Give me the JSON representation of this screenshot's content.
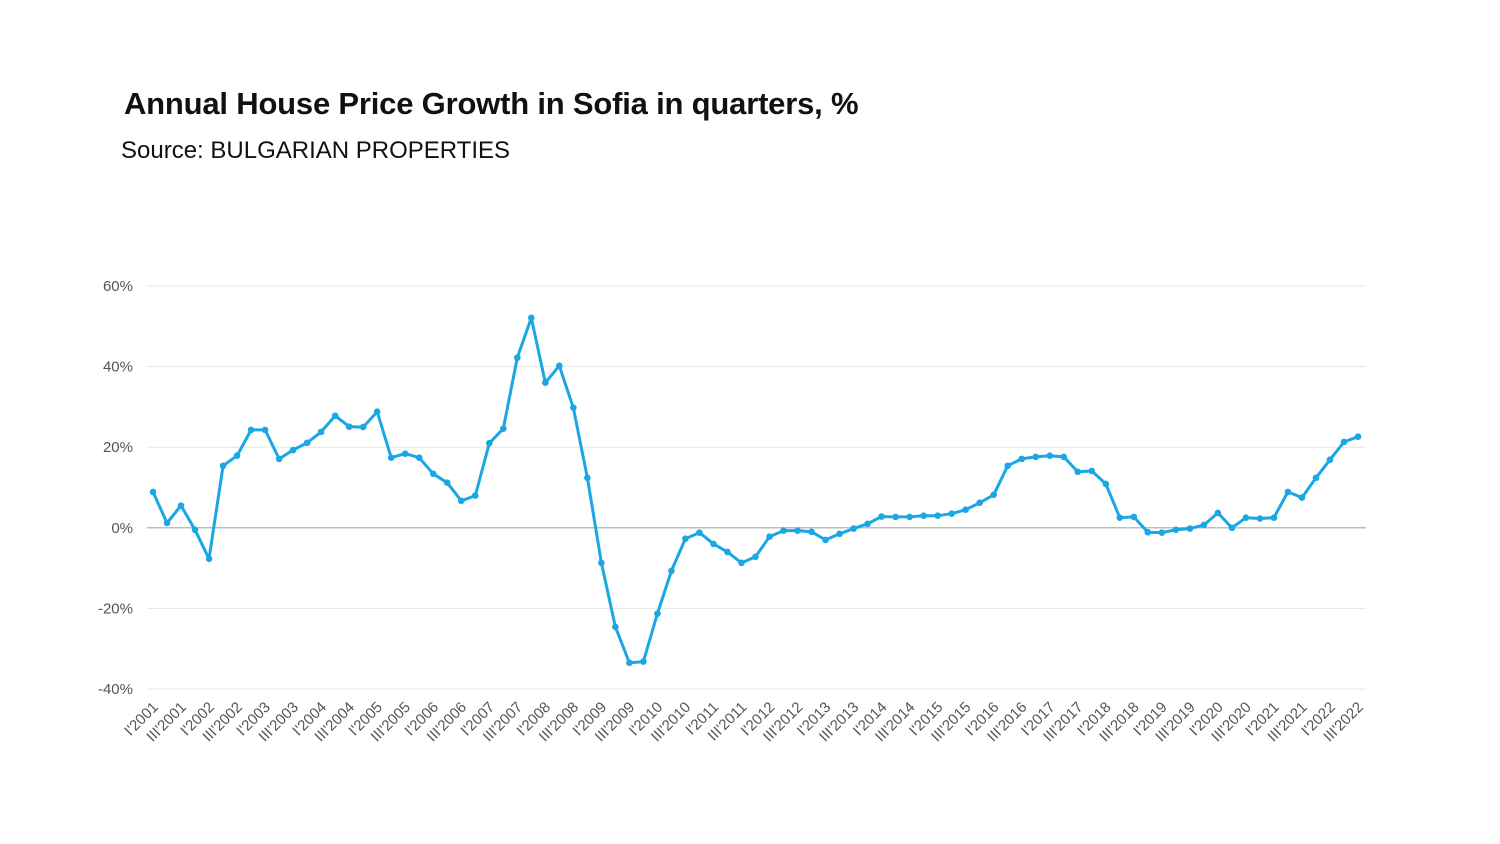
{
  "chart_data": {
    "type": "line",
    "title": "Annual House Price Growth in Sofia in quarters, %",
    "subtitle": "Source: BULGARIAN PROPERTIES",
    "xlabel": "",
    "ylabel": "",
    "ylim": [
      -40,
      60
    ],
    "yticks": [
      60,
      40,
      20,
      0,
      -20,
      -40
    ],
    "ytick_labels": [
      "60%",
      "40%",
      "20%",
      "0%",
      "-20%",
      "-40%"
    ],
    "grid": true,
    "legend": "none",
    "line_color": "#1ba6e4",
    "start_year": 2001,
    "x_tick_labels": [
      "I'2001",
      "III'2001",
      "I'2002",
      "III'2002",
      "I'2003",
      "III'2003",
      "I'2004",
      "III'2004",
      "I'2005",
      "III'2005",
      "I'2006",
      "III'2006",
      "I'2007",
      "III'2007",
      "I'2008",
      "III'2008",
      "I'2009",
      "III'2009",
      "I'2010",
      "III'2010",
      "I'2011",
      "III'2011",
      "I'2012",
      "III'2012",
      "I'2013",
      "III'2013",
      "I'2014",
      "III'2014",
      "I'2015",
      "III'2015",
      "I'2016",
      "III'2016",
      "I'2017",
      "III'2017",
      "I'2018",
      "III'2018",
      "I'2019",
      "III'2019",
      "I'2020",
      "III'2020",
      "I'2021",
      "III'2021",
      "I'2022",
      "III'2022"
    ],
    "values": [
      8.9,
      1.2,
      5.5,
      -0.5,
      -7.7,
      15.4,
      17.9,
      24.3,
      24.3,
      17.1,
      19.3,
      21.1,
      23.8,
      27.8,
      25.1,
      25.0,
      28.8,
      17.4,
      18.4,
      17.4,
      13.4,
      11.2,
      6.7,
      8.0,
      21.0,
      24.6,
      42.2,
      52.1,
      36.0,
      40.2,
      29.8,
      12.4,
      -8.7,
      -24.6,
      -33.5,
      -33.2,
      -21.3,
      -10.7,
      -2.7,
      -1.2,
      -4.0,
      -6.0,
      -8.7,
      -7.2,
      -2.2,
      -0.7,
      -0.7,
      -1.0,
      -3.0,
      -1.5,
      -0.2,
      1.0,
      2.8,
      2.7,
      2.7,
      3.0,
      3.0,
      3.5,
      4.5,
      6.2,
      8.2,
      15.4,
      17.1,
      17.6,
      17.9,
      17.6,
      13.9,
      14.1,
      10.9,
      2.5,
      2.7,
      -1.1,
      -1.2,
      -0.5,
      -0.2,
      0.7,
      3.7,
      0.0,
      2.5,
      2.3,
      2.5,
      8.9,
      7.5,
      12.4,
      16.9,
      21.3,
      22.6
    ]
  }
}
